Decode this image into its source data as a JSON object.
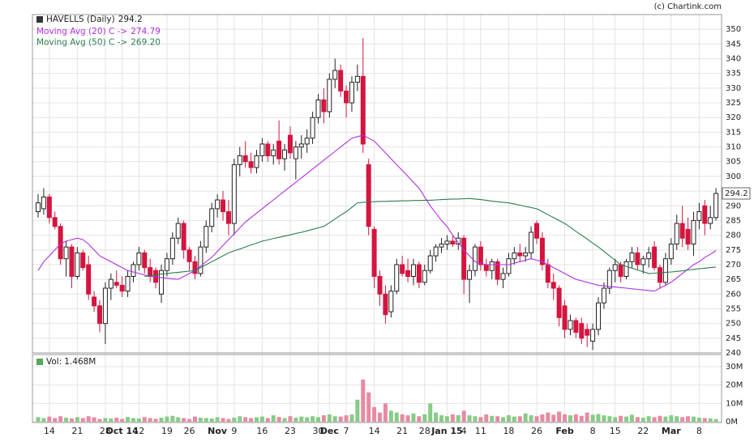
{
  "chart_data": {
    "type": "candlestick",
    "credit": "(c) Chartink.com",
    "title": "HAVELLS (Daily)",
    "up_color": "#ffffff",
    "down_color": "#d4153f",
    "grid": true,
    "ylim": [
      240,
      355
    ],
    "yticks": [
      240,
      245,
      250,
      255,
      260,
      265,
      270,
      275,
      280,
      285,
      290,
      295,
      300,
      305,
      310,
      315,
      320,
      325,
      330,
      335,
      340,
      345,
      350
    ],
    "xticks": [
      {
        "value": 2,
        "label": "14"
      },
      {
        "value": 7,
        "label": "21"
      },
      {
        "value": 12,
        "label": "28"
      },
      {
        "value": 15,
        "label": "Oct 14"
      },
      {
        "value": 18,
        "label": "12"
      },
      {
        "value": 23,
        "label": "19"
      },
      {
        "value": 27,
        "label": "26"
      },
      {
        "value": 32,
        "label": "Nov"
      },
      {
        "value": 35,
        "label": "9"
      },
      {
        "value": 40,
        "label": "16"
      },
      {
        "value": 45,
        "label": "23"
      },
      {
        "value": 50,
        "label": "30"
      },
      {
        "value": 52,
        "label": "Dec"
      },
      {
        "value": 55,
        "label": "7"
      },
      {
        "value": 60,
        "label": "14"
      },
      {
        "value": 65,
        "label": "21"
      },
      {
        "value": 69,
        "label": "28"
      },
      {
        "value": 73,
        "label": "Jan 15"
      },
      {
        "value": 76,
        "label": "4"
      },
      {
        "value": 79,
        "label": "11"
      },
      {
        "value": 84,
        "label": "18"
      },
      {
        "value": 89,
        "label": "26"
      },
      {
        "value": 94,
        "label": "Feb"
      },
      {
        "value": 99,
        "label": "8"
      },
      {
        "value": 103,
        "label": "15"
      },
      {
        "value": 108,
        "label": "22"
      },
      {
        "value": 113,
        "label": "Mar"
      },
      {
        "value": 118,
        "label": "8"
      }
    ],
    "open": [
      288,
      289,
      293,
      286,
      283,
      272,
      276,
      266,
      274,
      270,
      259,
      256,
      250,
      262,
      264,
      263,
      261,
      266,
      270,
      274,
      269,
      268,
      260,
      268,
      272,
      279,
      284,
      275,
      271,
      267,
      276,
      283,
      289,
      292,
      288,
      284,
      304,
      307,
      305,
      303,
      307,
      311,
      307,
      312,
      306,
      314,
      306,
      310,
      311,
      313,
      320,
      326,
      322,
      333,
      336,
      329,
      325,
      332,
      334,
      304,
      282,
      266,
      260,
      254,
      261,
      270,
      268,
      266,
      270,
      264,
      268,
      273,
      276,
      277,
      278,
      277,
      279,
      265,
      268,
      276,
      270,
      268,
      271,
      265,
      267,
      272,
      274,
      273,
      274,
      284,
      279,
      270,
      264,
      262,
      256,
      248,
      251,
      250,
      248,
      244,
      248,
      257,
      262,
      268,
      270,
      266,
      271,
      274,
      270,
      272,
      276,
      269,
      264,
      272,
      277,
      284,
      282,
      277,
      285,
      290,
      284,
      286
    ],
    "high": [
      294,
      296,
      294,
      288,
      284,
      278,
      277,
      276,
      275,
      273,
      261,
      258,
      264,
      267,
      268,
      266,
      268,
      271,
      276,
      275,
      272,
      269,
      270,
      274,
      281,
      286,
      285,
      276,
      273,
      278,
      285,
      291,
      294,
      295,
      292,
      306,
      310,
      312,
      308,
      309,
      313,
      312,
      311,
      319,
      311,
      317,
      312,
      314,
      316,
      322,
      328,
      330,
      335,
      340,
      338,
      331,
      334,
      338,
      347,
      306,
      283,
      268,
      263,
      263,
      272,
      273,
      272,
      272,
      271,
      270,
      275,
      277,
      279,
      280,
      280,
      281,
      280,
      270,
      277,
      278,
      272,
      272,
      272,
      269,
      274,
      276,
      277,
      276,
      283,
      285,
      281,
      272,
      267,
      263,
      258,
      253,
      252,
      252,
      250,
      250,
      259,
      264,
      269,
      272,
      271,
      272,
      276,
      276,
      273,
      276,
      278,
      270,
      274,
      279,
      287,
      290,
      286,
      288,
      291,
      292,
      290,
      296
    ],
    "low": [
      286,
      287,
      284,
      282,
      270,
      266,
      262,
      265,
      268,
      258,
      254,
      247,
      243,
      258,
      262,
      259,
      259,
      264,
      268,
      267,
      264,
      262,
      257,
      266,
      270,
      277,
      272,
      268,
      265,
      266,
      274,
      281,
      286,
      285,
      280,
      280,
      300,
      303,
      301,
      301,
      305,
      305,
      304,
      304,
      302,
      306,
      299,
      306,
      308,
      311,
      318,
      318,
      320,
      330,
      327,
      320,
      322,
      329,
      308,
      280,
      262,
      256,
      250,
      252,
      260,
      266,
      264,
      263,
      262,
      263,
      267,
      271,
      274,
      275,
      276,
      275,
      260,
      257,
      266,
      268,
      266,
      265,
      263,
      262,
      266,
      270,
      271,
      271,
      272,
      277,
      268,
      262,
      258,
      249,
      245,
      246,
      245,
      243,
      242,
      241,
      246,
      255,
      260,
      264,
      264,
      265,
      269,
      268,
      267,
      269,
      268,
      262,
      263,
      270,
      275,
      276,
      275,
      273,
      282,
      280,
      282,
      285
    ],
    "close": [
      291,
      293,
      286,
      283,
      272,
      276,
      266,
      274,
      269,
      260,
      256,
      250,
      262,
      265,
      263,
      261,
      266,
      270,
      274,
      269,
      266,
      264,
      268,
      272,
      279,
      284,
      275,
      271,
      267,
      276,
      283,
      289,
      292,
      288,
      284,
      304,
      307,
      305,
      303,
      307,
      311,
      307,
      309,
      306,
      309,
      308,
      310,
      311,
      313,
      320,
      326,
      322,
      333,
      336,
      329,
      325,
      332,
      334,
      311,
      283,
      266,
      260,
      253,
      261,
      270,
      267,
      266,
      270,
      264,
      268,
      273,
      276,
      277,
      278,
      277,
      279,
      265,
      268,
      276,
      270,
      268,
      271,
      265,
      267,
      272,
      274,
      273,
      274,
      281,
      279,
      270,
      264,
      262,
      252,
      248,
      251,
      247,
      245,
      246,
      248,
      257,
      262,
      268,
      270,
      266,
      271,
      274,
      270,
      272,
      274,
      269,
      264,
      272,
      277,
      284,
      279,
      277,
      285,
      288,
      284,
      286,
      294.2
    ],
    "moving_averages": [
      {
        "name": "Moving Avg (20) C ->",
        "color": "#b030e0",
        "values": [
          268,
          271,
          273,
          275,
          277,
          278,
          278.5,
          279,
          278.5,
          277,
          275,
          273,
          272,
          271,
          270,
          269,
          268,
          267.5,
          267,
          266.5,
          266,
          265.8,
          265.6,
          265.4,
          265.2,
          265,
          266,
          267,
          268,
          269.5,
          271,
          272.5,
          274.5,
          276.5,
          278.5,
          280.5,
          282.5,
          284.5,
          286,
          287.5,
          289,
          290.5,
          292,
          293.5,
          295,
          296.5,
          298,
          299.5,
          301,
          302.5,
          304,
          305.5,
          307,
          308.5,
          310,
          311.5,
          313,
          313.5,
          314,
          313,
          312,
          310,
          308,
          306,
          304,
          302,
          300,
          298,
          296,
          293,
          290,
          287.5,
          285,
          283,
          280,
          277.5,
          275,
          273,
          271,
          270.5,
          270,
          270,
          270,
          270,
          270,
          270.5,
          271,
          271.5,
          272,
          271.5,
          271,
          270,
          269,
          268,
          267,
          266,
          265,
          264.5,
          264,
          263.5,
          263,
          262.8,
          262.6,
          262.4,
          262.2,
          262,
          261.8,
          261.6,
          261.4,
          261.2,
          261,
          262,
          263,
          264,
          265.5,
          267,
          268.5,
          270,
          271,
          272.5,
          273.5,
          274.79
        ]
      },
      {
        "name": "Moving Avg (50) C ->",
        "color": "#2a7d4f",
        "last_label": "269.20",
        "values": [
          null,
          null,
          null,
          null,
          null,
          null,
          null,
          null,
          null,
          null,
          null,
          null,
          null,
          null,
          null,
          null,
          null,
          null,
          null,
          266,
          266.3,
          266.5,
          266.8,
          267,
          267.2,
          267.4,
          267.6,
          267.8,
          268,
          269,
          270,
          271,
          272,
          273,
          274,
          274.7,
          275.3,
          276,
          276.7,
          277.3,
          278,
          278.4,
          278.9,
          279.3,
          279.7,
          280.1,
          280.6,
          281,
          281.5,
          282,
          282.5,
          283,
          284.2,
          285.5,
          286.8,
          288,
          289.5,
          291,
          291.2,
          291.3,
          291.4,
          291.5,
          291.5,
          291.6,
          291.6,
          291.7,
          291.7,
          291.8,
          291.8,
          291.9,
          291.9,
          292,
          292.1,
          292.2,
          292.3,
          292.3,
          292.4,
          292.5,
          292.3,
          292.1,
          291.9,
          291.6,
          291.4,
          291.2,
          291,
          290.6,
          290.2,
          289.8,
          289.4,
          289,
          288,
          287,
          286,
          285,
          284,
          282.7,
          281.3,
          280,
          278.7,
          277.3,
          276,
          274.5,
          273,
          271.5,
          270,
          269.4,
          268.8,
          268.2,
          267.6,
          267,
          267.1,
          267.3,
          267.4,
          267.5,
          267.7,
          267.9,
          268.2,
          268.4,
          268.6,
          268.8,
          269,
          269.2
        ]
      }
    ],
    "volume": {
      "label": "Vol:",
      "last_label": "1.468M",
      "up_color": "#86cc86",
      "down_color": "#e88aa2",
      "ylim": [
        0,
        36.6
      ],
      "yticks": [
        {
          "value": 0,
          "label": "0M"
        },
        {
          "value": 10,
          "label": "10M"
        },
        {
          "value": 20,
          "label": "20M"
        },
        {
          "value": 30,
          "label": "30M"
        }
      ],
      "values": [
        2.5,
        2,
        2.8,
        2,
        3,
        2.2,
        1.8,
        2.5,
        2,
        3,
        2.4,
        1.5,
        2,
        1.8,
        2.2,
        1.5,
        2.6,
        2,
        1.8,
        2.5,
        2,
        1.6,
        2.2,
        2.8,
        3.2,
        2.4,
        2,
        1.5,
        2.8,
        2.2,
        2,
        1.8,
        2.5,
        2,
        1.5,
        2.2,
        3,
        2.5,
        2,
        2.4,
        2.8,
        2,
        3.5,
        2.6,
        2,
        3,
        2.2,
        2.8,
        2.4,
        3,
        2.5,
        3.5,
        4,
        3,
        2.8,
        3.5,
        4,
        12,
        23,
        16,
        8,
        5,
        10,
        6,
        5,
        4,
        3.5,
        4.5,
        3,
        4,
        10,
        5,
        3.5,
        3,
        4,
        3.5,
        6,
        3.5,
        3,
        2.5,
        4,
        3.2,
        3,
        2.5,
        3.5,
        2.8,
        3,
        4.5,
        3.5,
        3,
        4,
        5,
        3.8,
        5.5,
        4,
        3.5,
        4,
        3.2,
        5,
        3.8,
        4.2,
        3.5,
        3,
        2.5,
        3.2,
        2.8,
        3.8,
        2.5,
        2.2,
        3,
        2.5,
        3.2,
        2.8,
        3.5,
        3,
        2.5,
        3,
        2.8,
        2.2,
        2,
        1.8,
        1.468
      ]
    }
  }
}
